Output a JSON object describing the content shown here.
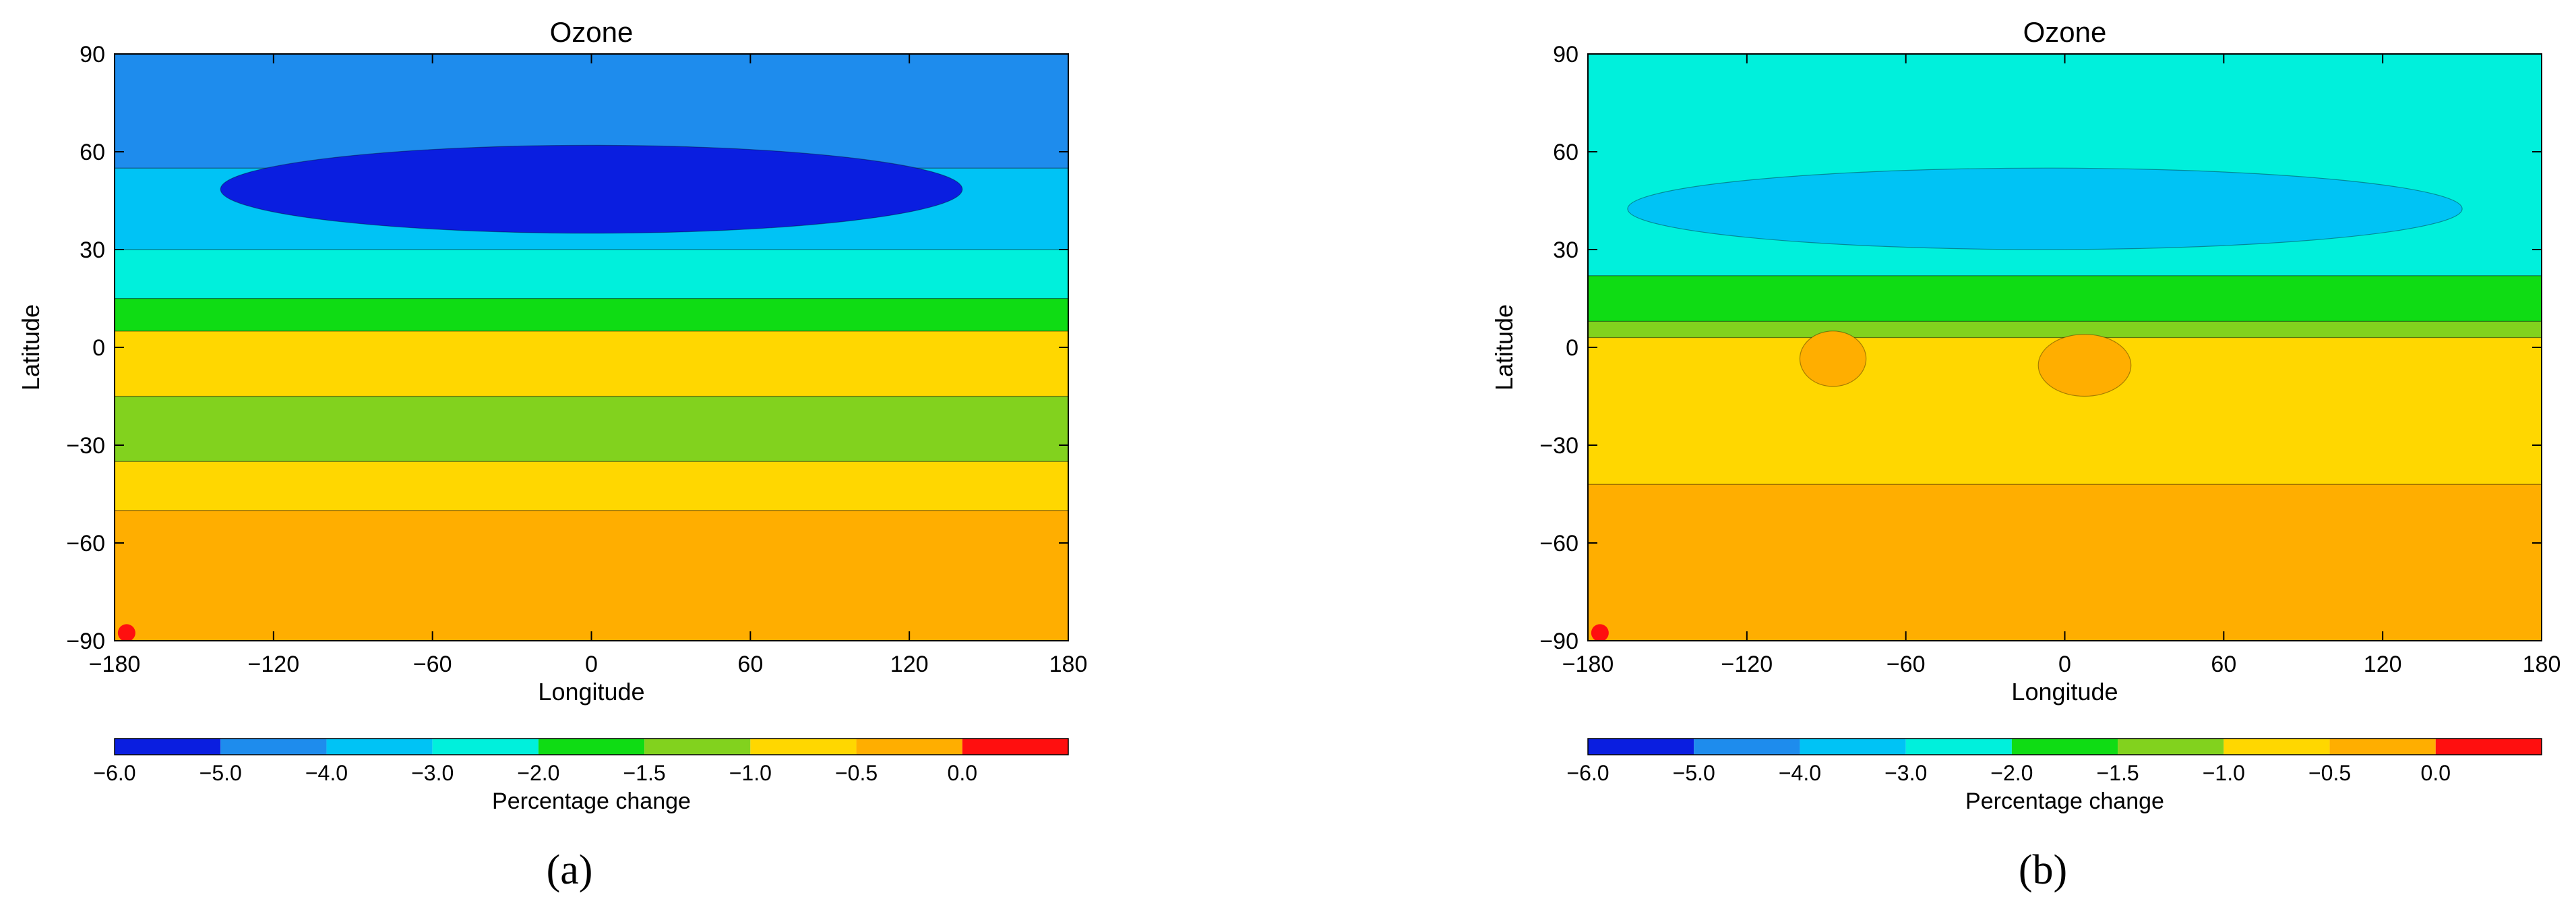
{
  "chart_data": [
    {
      "type": "heatmap",
      "panel_label": "(a)",
      "title": "Ozone",
      "xlabel": "Longitude",
      "ylabel": "Latitude",
      "xlim": [
        -180,
        180
      ],
      "ylim": [
        -90,
        90
      ],
      "xticks": [
        "-180",
        "-120",
        "-60",
        "0",
        "60",
        "120",
        "180"
      ],
      "yticks": [
        "90",
        "60",
        "30",
        "0",
        "-30",
        "-60",
        "-90"
      ],
      "colorbar": {
        "label": "Percentage change",
        "ticks": [
          "-6.0",
          "-5.0",
          "-4.0",
          "-3.0",
          "-2.0",
          "-1.5",
          "-1.0",
          "-0.5",
          "0.0"
        ],
        "bins": [
          {
            "from": -6.0,
            "to": -5.0,
            "color": "#0a1ee0"
          },
          {
            "from": -5.0,
            "to": -4.0,
            "color": "#1e8ced"
          },
          {
            "from": -4.0,
            "to": -3.0,
            "color": "#00c3f5"
          },
          {
            "from": -3.0,
            "to": -2.0,
            "color": "#00f0dc"
          },
          {
            "from": -2.0,
            "to": -1.5,
            "color": "#0fdc14"
          },
          {
            "from": -1.5,
            "to": -1.0,
            "color": "#82d21e"
          },
          {
            "from": -1.0,
            "to": -0.5,
            "color": "#ffd700"
          },
          {
            "from": -0.5,
            "to": 0.0,
            "color": "#ffae00"
          },
          {
            "from": 0.0,
            "to": null,
            "color": "#ff0f0f"
          }
        ]
      },
      "field": [
        {
          "lat_range": [
            -90,
            -50
          ],
          "value": -0.25
        },
        {
          "lat_range": [
            -50,
            -35
          ],
          "value": -0.75
        },
        {
          "lat_range": [
            -35,
            -15
          ],
          "value": -1.25
        },
        {
          "lat_range": [
            -15,
            5
          ],
          "value": -0.75
        },
        {
          "lat_range": [
            5,
            15
          ],
          "value": -1.75
        },
        {
          "lat_range": [
            15,
            30
          ],
          "value": -2.5
        },
        {
          "lat_range": [
            30,
            55
          ],
          "value": -3.5
        },
        {
          "lat_range": [
            55,
            90
          ],
          "value": -4.5
        },
        {
          "lat_range": [
            35,
            62
          ],
          "lon_range": [
            -140,
            140
          ],
          "value": -5.5
        }
      ],
      "marker": {
        "lon": -178,
        "lat": -88,
        "value": 0.1
      }
    },
    {
      "type": "heatmap",
      "panel_label": "(b)",
      "title": "Ozone",
      "xlabel": "Longitude",
      "ylabel": "Latitude",
      "xlim": [
        -180,
        180
      ],
      "ylim": [
        -90,
        90
      ],
      "xticks": [
        "-180",
        "-120",
        "-60",
        "0",
        "60",
        "120",
        "180"
      ],
      "yticks": [
        "90",
        "60",
        "30",
        "0",
        "-30",
        "-60",
        "-90"
      ],
      "colorbar": {
        "label": "Percentage change",
        "ticks": [
          "-6.0",
          "-5.0",
          "-4.0",
          "-3.0",
          "-2.0",
          "-1.5",
          "-1.0",
          "-0.5",
          "0.0"
        ],
        "bins": [
          {
            "from": -6.0,
            "to": -5.0,
            "color": "#0a1ee0"
          },
          {
            "from": -5.0,
            "to": -4.0,
            "color": "#1e8ced"
          },
          {
            "from": -4.0,
            "to": -3.0,
            "color": "#00c3f5"
          },
          {
            "from": -3.0,
            "to": -2.0,
            "color": "#00f0dc"
          },
          {
            "from": -2.0,
            "to": -1.5,
            "color": "#0fdc14"
          },
          {
            "from": -1.5,
            "to": -1.0,
            "color": "#82d21e"
          },
          {
            "from": -1.0,
            "to": -0.5,
            "color": "#ffd700"
          },
          {
            "from": -0.5,
            "to": 0.0,
            "color": "#ffae00"
          },
          {
            "from": 0.0,
            "to": null,
            "color": "#ff0f0f"
          }
        ]
      },
      "field": [
        {
          "lat_range": [
            -90,
            -42
          ],
          "value": -0.25
        },
        {
          "lat_range": [
            -42,
            3
          ],
          "value": -0.75
        },
        {
          "lat_range": [
            3,
            8
          ],
          "value": -1.25
        },
        {
          "lat_range": [
            8,
            22
          ],
          "value": -1.75
        },
        {
          "lat_range": [
            22,
            90
          ],
          "value": -2.5
        },
        {
          "lat_range": [
            30,
            55
          ],
          "lon_range": [
            -165,
            150
          ],
          "value": -3.5
        },
        {
          "lat_range": [
            -12,
            5
          ],
          "lon_range": [
            -100,
            -75
          ],
          "value": -0.25
        },
        {
          "lat_range": [
            -15,
            4
          ],
          "lon_range": [
            -10,
            25
          ],
          "value": -0.25
        }
      ],
      "marker": {
        "lon": -178,
        "lat": -88,
        "value": 0.1
      }
    }
  ]
}
